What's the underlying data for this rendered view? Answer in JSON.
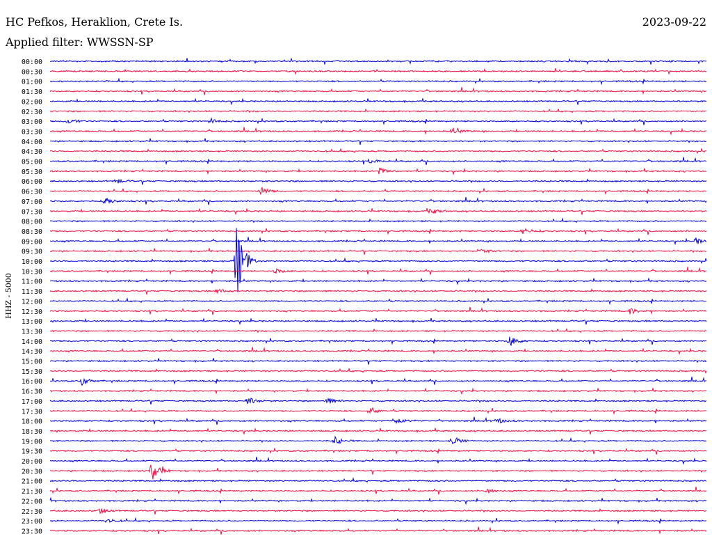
{
  "station": "HC Pefkos, Heraklion, Crete Is.",
  "date": "2023-09-22",
  "filter_label": "Applied filter: WWSSN-SP",
  "channel_label": "HHZ - 5000",
  "colors": {
    "trace_a": "#0000dd",
    "trace_b": "#ee1144",
    "text": "#000000",
    "background": "#ffffff"
  },
  "chart_data": {
    "type": "line",
    "title": "HC Pefkos, Heraklion, Crete Is.",
    "subtitle": "Applied filter: WWSSN-SP",
    "ylabel": "HHZ - 5000",
    "xlabel": "",
    "rows": [
      "00:00",
      "00:30",
      "01:00",
      "01:30",
      "02:00",
      "02:30",
      "03:00",
      "03:30",
      "04:00",
      "04:30",
      "05:00",
      "05:30",
      "06:00",
      "06:30",
      "07:00",
      "07:30",
      "08:00",
      "08:30",
      "09:00",
      "09:30",
      "10:00",
      "10:30",
      "11:00",
      "11:30",
      "12:00",
      "12:30",
      "13:00",
      "13:30",
      "14:00",
      "14:30",
      "15:00",
      "15:30",
      "16:00",
      "16:30",
      "17:00",
      "17:30",
      "18:00",
      "18:30",
      "19:00",
      "19:30",
      "20:00",
      "20:30",
      "21:00",
      "21:30",
      "22:00",
      "22:30",
      "23:00",
      "23:30"
    ],
    "row_minutes": 30,
    "grid": false,
    "events": [
      {
        "row": "03:00",
        "minute": 0.8,
        "amplitude": 0.6
      },
      {
        "row": "03:00",
        "minute": 7.3,
        "amplitude": 0.5
      },
      {
        "row": "03:30",
        "minute": 18.4,
        "amplitude": 0.6
      },
      {
        "row": "05:00",
        "minute": 14.6,
        "amplitude": 0.5
      },
      {
        "row": "05:30",
        "minute": 15.0,
        "amplitude": 0.7
      },
      {
        "row": "06:00",
        "minute": 3.0,
        "amplitude": 0.5
      },
      {
        "row": "06:30",
        "minute": 9.6,
        "amplitude": 0.9
      },
      {
        "row": "07:00",
        "minute": 2.5,
        "amplitude": 0.7
      },
      {
        "row": "07:30",
        "minute": 17.4,
        "amplitude": 0.6
      },
      {
        "row": "08:30",
        "minute": 21.6,
        "amplitude": 0.6
      },
      {
        "row": "09:00",
        "minute": 29.5,
        "amplitude": 0.6
      },
      {
        "row": "09:30",
        "minute": 19.6,
        "amplitude": 0.6
      },
      {
        "row": "10:00",
        "minute": 8.5,
        "amplitude": 8.0
      },
      {
        "row": "10:30",
        "minute": 10.3,
        "amplitude": 0.5
      },
      {
        "row": "11:30",
        "minute": 7.6,
        "amplitude": 0.5
      },
      {
        "row": "12:30",
        "minute": 26.5,
        "amplitude": 0.6
      },
      {
        "row": "14:00",
        "minute": 21.0,
        "amplitude": 1.0
      },
      {
        "row": "16:00",
        "minute": 1.4,
        "amplitude": 0.9
      },
      {
        "row": "17:00",
        "minute": 9.0,
        "amplitude": 0.8
      },
      {
        "row": "17:00",
        "minute": 12.6,
        "amplitude": 0.7
      },
      {
        "row": "17:30",
        "minute": 14.6,
        "amplitude": 0.7
      },
      {
        "row": "18:00",
        "minute": 15.8,
        "amplitude": 0.7
      },
      {
        "row": "18:00",
        "minute": 20.4,
        "amplitude": 0.5
      },
      {
        "row": "19:00",
        "minute": 13.0,
        "amplitude": 0.8
      },
      {
        "row": "19:00",
        "minute": 18.4,
        "amplitude": 0.8
      },
      {
        "row": "20:30",
        "minute": 4.6,
        "amplitude": 2.2
      },
      {
        "row": "21:30",
        "minute": 19.9,
        "amplitude": 0.6
      },
      {
        "row": "22:30",
        "minute": 2.2,
        "amplitude": 0.7
      },
      {
        "row": "23:00",
        "minute": 2.6,
        "amplitude": 0.5
      }
    ]
  }
}
